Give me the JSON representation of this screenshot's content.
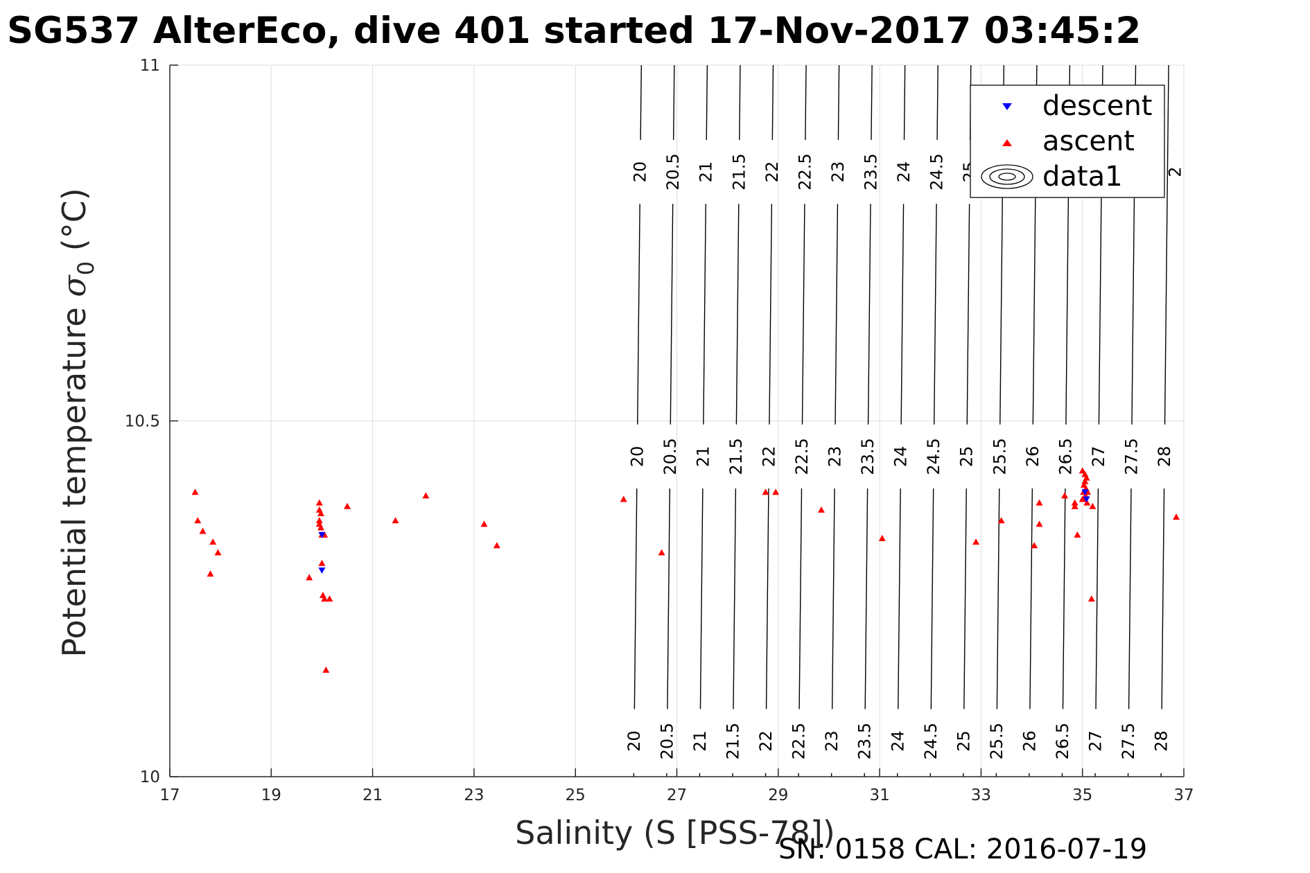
{
  "chart_data": {
    "type": "scatter",
    "title": "SG537 AlterEco, dive 401 started 17-Nov-2017 03:45:2",
    "xlabel": "Salinity (S [PSS-78])",
    "ylabel_main": "Potential temperature ",
    "ylabel_symbol": "σ",
    "ylabel_subscript": "0",
    "ylabel_unit": " (°C)",
    "xlim": [
      17,
      37
    ],
    "ylim": [
      10,
      11
    ],
    "xticks": [
      17,
      19,
      21,
      23,
      25,
      27,
      29,
      31,
      33,
      35,
      37
    ],
    "yticks": [
      10,
      10.5,
      11
    ],
    "xtick_labels": [
      "17",
      "19",
      "21",
      "23",
      "25",
      "27",
      "29",
      "31",
      "33",
      "35",
      "37"
    ],
    "ytick_labels": [
      "10",
      "10.5",
      "11"
    ],
    "grid": true,
    "legend_position": "top-right",
    "legend": [
      {
        "label": "descent",
        "marker": "triangle-down",
        "color": "#0000ff"
      },
      {
        "label": "ascent",
        "marker": "triangle-up",
        "color": "#ff0000"
      },
      {
        "label": "data1",
        "marker": "contour",
        "color": "#000000"
      }
    ],
    "series": [
      {
        "name": "descent",
        "color": "#0000ff",
        "marker": "triangle-down",
        "points": [
          [
            20.0,
            10.34
          ],
          [
            20.0,
            10.29
          ],
          [
            35.05,
            10.4
          ],
          [
            35.08,
            10.39
          ]
        ]
      },
      {
        "name": "ascent",
        "color": "#ff0000",
        "marker": "triangle-up",
        "points": [
          [
            17.5,
            10.4
          ],
          [
            17.55,
            10.36
          ],
          [
            17.65,
            10.345
          ],
          [
            17.85,
            10.33
          ],
          [
            17.95,
            10.315
          ],
          [
            17.8,
            10.285
          ],
          [
            19.75,
            10.28
          ],
          [
            19.95,
            10.385
          ],
          [
            19.95,
            10.375
          ],
          [
            19.98,
            10.37
          ],
          [
            19.95,
            10.36
          ],
          [
            19.95,
            10.355
          ],
          [
            19.98,
            10.35
          ],
          [
            20.0,
            10.34
          ],
          [
            20.05,
            10.34
          ],
          [
            20.0,
            10.3
          ],
          [
            20.02,
            10.255
          ],
          [
            20.05,
            10.25
          ],
          [
            20.15,
            10.25
          ],
          [
            20.08,
            10.15
          ],
          [
            20.5,
            10.38
          ],
          [
            21.45,
            10.36
          ],
          [
            22.05,
            10.395
          ],
          [
            23.2,
            10.355
          ],
          [
            23.45,
            10.325
          ],
          [
            25.95,
            10.39
          ],
          [
            26.7,
            10.315
          ],
          [
            28.75,
            10.4
          ],
          [
            28.95,
            10.4
          ],
          [
            29.85,
            10.375
          ],
          [
            31.05,
            10.335
          ],
          [
            32.9,
            10.33
          ],
          [
            33.4,
            10.36
          ],
          [
            34.05,
            10.325
          ],
          [
            34.15,
            10.355
          ],
          [
            34.15,
            10.385
          ],
          [
            34.65,
            10.395
          ],
          [
            34.85,
            10.38
          ],
          [
            34.85,
            10.385
          ],
          [
            34.9,
            10.34
          ],
          [
            35.0,
            10.43
          ],
          [
            35.05,
            10.425
          ],
          [
            35.08,
            10.42
          ],
          [
            35.05,
            10.415
          ],
          [
            35.03,
            10.41
          ],
          [
            35.07,
            10.405
          ],
          [
            35.02,
            10.4
          ],
          [
            35.1,
            10.4
          ],
          [
            35.06,
            10.395
          ],
          [
            35.04,
            10.39
          ],
          [
            35.09,
            10.385
          ],
          [
            35.0,
            10.39
          ],
          [
            35.2,
            10.38
          ],
          [
            35.18,
            10.25
          ],
          [
            36.85,
            10.365
          ]
        ]
      }
    ],
    "contours": {
      "name": "data1",
      "levels": [
        20,
        20.5,
        21,
        21.5,
        22,
        22.5,
        23,
        23.5,
        24,
        24.5,
        25,
        25.5,
        26,
        26.5,
        27,
        27.5,
        28
      ],
      "level_labels": [
        "20",
        "20.5",
        "21",
        "21.5",
        "22",
        "22.5",
        "23",
        "23.5",
        "24",
        "24.5",
        "25",
        "25.5",
        "26",
        "26.5",
        "27",
        "27.5",
        "28"
      ],
      "salinity_at_top": [
        26.3,
        26.95,
        27.6,
        28.25,
        28.9,
        29.55,
        30.2,
        30.85,
        31.5,
        32.15,
        32.8,
        33.45,
        34.1,
        34.75,
        35.4,
        36.05,
        36.7
      ],
      "salinity_at_bottom": [
        26.15,
        26.8,
        27.45,
        28.1,
        28.75,
        29.4,
        30.05,
        30.7,
        31.35,
        32.0,
        32.65,
        33.3,
        33.95,
        34.6,
        35.25,
        35.9,
        36.55
      ],
      "label_rows_temperature": [
        10.85,
        10.45,
        10.05
      ],
      "hidden_top_row_labels": [
        "25.5",
        "26",
        "26.5",
        "27",
        "27.5",
        "28"
      ],
      "top_row_visible_levels": [
        "20",
        "20.5",
        "21",
        "21.5",
        "22",
        "22.5",
        "23",
        "23.5",
        "24",
        "24.5",
        "25"
      ],
      "top_row_clipped_text": "2"
    }
  },
  "footer": {
    "text": "SN: 0158  CAL: 2016-07-19"
  }
}
